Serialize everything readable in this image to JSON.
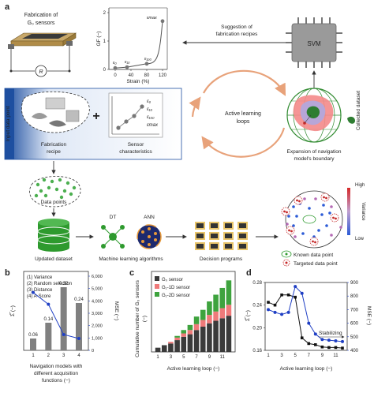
{
  "figure": {
    "panel_a": {
      "label": "a",
      "fabrication_title_1": "Fabrication of",
      "fabrication_title_2": "G₀ sensors",
      "resistor": "R",
      "gf_ylabel": "GF (−)",
      "strain_xlabel": "Strain (%)",
      "strain_ticks": [
        "0",
        "40",
        "80",
        "120"
      ],
      "gf_ticks": [
        "0",
        "1",
        "2"
      ],
      "gf_points": [
        {
          "label": "ε₀",
          "strain": 0,
          "gf": 0.05
        },
        {
          "label": "ε₁₀",
          "strain": 30,
          "gf": 0.08
        },
        {
          "label": "ε₁₀₀",
          "strain": 80,
          "gf": 0.2
        },
        {
          "label": "εmax",
          "strain": 120,
          "gf": 1.7
        }
      ],
      "suggestion_1": "Suggestion of",
      "suggestion_2": "fabrication recipes",
      "svm": "SVM",
      "input_data_point": "Input data point",
      "recipe_1": "Fabrication",
      "recipe_2": "recipe",
      "plus": "+",
      "sensor_char_1": "Sensor",
      "sensor_char_2": "characteristics",
      "char_labels": [
        "ε₀",
        "ε₁₀",
        "ε₁₀₀",
        "εmax"
      ],
      "al_1": "Active learning",
      "al_2": "loops",
      "collected_dataset": "Collected dataset",
      "expansion_1": "Expansion of navigation",
      "expansion_2": "model's boundary",
      "data_points": "Data points",
      "dt": "DT",
      "ann": "ANN",
      "updated_dataset": "Updated dataset",
      "ml_algorithms": "Machine learning algorithms",
      "decision_programs": "Decision programs",
      "variance": "Variance",
      "high": "High",
      "low": "Low",
      "legend_known": "Known data point",
      "legend_targeted": "Targeted data point"
    },
    "panel_b": {
      "label": "b",
      "list": [
        "(1) Variance",
        "(2) Random selection",
        "(3) Distance",
        "(4) A-Score"
      ],
      "ylabel_left": "Σ̅ (−)",
      "ylabel_right": "MSE (−)",
      "xlabel_1": "Navigation models with",
      "xlabel_2": "different acquisition",
      "xlabel_3": "functions (−)",
      "right_ticks": [
        "6,000",
        "5,000",
        "4,000",
        "3,000",
        "2,000",
        "1,000",
        "0"
      ]
    },
    "panel_c": {
      "label": "c",
      "ylabel_1": "Cumulative number of G₀ sensors",
      "ylabel_2": "(−)",
      "xlabel": "Active learning loop (−)",
      "legend": [
        "G₀ sensor",
        "G₁-1D sensor",
        "G₁-2D sensor"
      ]
    },
    "panel_d": {
      "label": "d",
      "ylabel_left": "Σ̅ (−)",
      "ylabel_right": "MSE (−)",
      "xlabel": "Active learning loop (−)",
      "annotation": "Stabilizing"
    },
    "colors": {
      "blue": "#1f3fc4",
      "gray_bar": "#808080",
      "g0": "#3a3a3a",
      "g1_1d": "#ef7a7a",
      "g1_2d": "#3ea33e",
      "loop_orange": "#e8a27a",
      "input_blue": "#1e4fa0"
    }
  },
  "chart_data": [
    {
      "type": "bar",
      "title": "",
      "categories": [
        "1",
        "2",
        "3",
        "4"
      ],
      "series": [
        {
          "name": "",
          "values": [
            0.06,
            0.14,
            0.32,
            0.24
          ]
        },
        {
          "name": "",
          "values": [
            4400,
            3500,
            1200,
            900
          ]
        }
      ],
      "bar_labels": [
        "0.06",
        "0.14",
        "0.32",
        "0.24"
      ],
      "ylim_left": [
        0,
        0.4
      ],
      "ylim_right": [
        0,
        6000
      ],
      "xlabel": "Navigation models with different acquisition functions (−)",
      "ylabel": "Σ̅ (−)",
      "ylabel_right": "MSE (−)"
    },
    {
      "type": "bar",
      "title": "",
      "stacked": true,
      "categories": [
        "1",
        "2",
        "3",
        "4",
        "5",
        "6",
        "7",
        "8",
        "9",
        "10",
        "11",
        "12"
      ],
      "series": [
        {
          "name": "G₀ sensor",
          "values": [
            5,
            8,
            10,
            14,
            18,
            21,
            26,
            30,
            34,
            37,
            40,
            43
          ]
        },
        {
          "name": "G₁-1D sensor",
          "values": [
            0,
            0,
            2,
            3,
            4,
            5,
            7,
            8,
            10,
            11,
            12,
            13
          ]
        },
        {
          "name": "G₁-2D sensor",
          "values": [
            0,
            0,
            0,
            2,
            4,
            6,
            9,
            12,
            16,
            20,
            24,
            29
          ]
        }
      ],
      "x_ticks": [
        "1",
        "3",
        "5",
        "7",
        "9",
        "11"
      ],
      "xlabel": "Active learning loop (−)",
      "ylabel": "Cumulative number of G₀ sensors (−)",
      "legend_position": "top-left"
    },
    {
      "type": "line",
      "title": "",
      "x": [
        1,
        2,
        3,
        4,
        5,
        6,
        7,
        8,
        9,
        10,
        11,
        12
      ],
      "series": [
        {
          "name": "",
          "values": [
            0.245,
            0.24,
            0.258,
            0.258,
            0.254,
            0.182,
            0.172,
            0.17,
            0.166,
            0.165,
            0.165,
            0.164
          ]
        },
        {
          "name": "",
          "values": [
            700,
            680,
            665,
            680,
            870,
            820,
            600,
            520,
            480,
            475,
            470,
            465
          ]
        }
      ],
      "x_ticks": [
        "1",
        "3",
        "5",
        "7",
        "9",
        "11"
      ],
      "ylim_left": [
        0.16,
        0.28
      ],
      "ylim_right": [
        400,
        900
      ],
      "left_ticks": [
        "0.28",
        "0.24",
        "0.20",
        "0.16"
      ],
      "right_ticks": [
        "900",
        "800",
        "700",
        "600",
        "500",
        "400"
      ],
      "xlabel": "Active learning loop (−)",
      "ylabel": "Σ̅ (−)",
      "ylabel_right": "MSE (−)",
      "annotation": "Stabilizing"
    }
  ]
}
